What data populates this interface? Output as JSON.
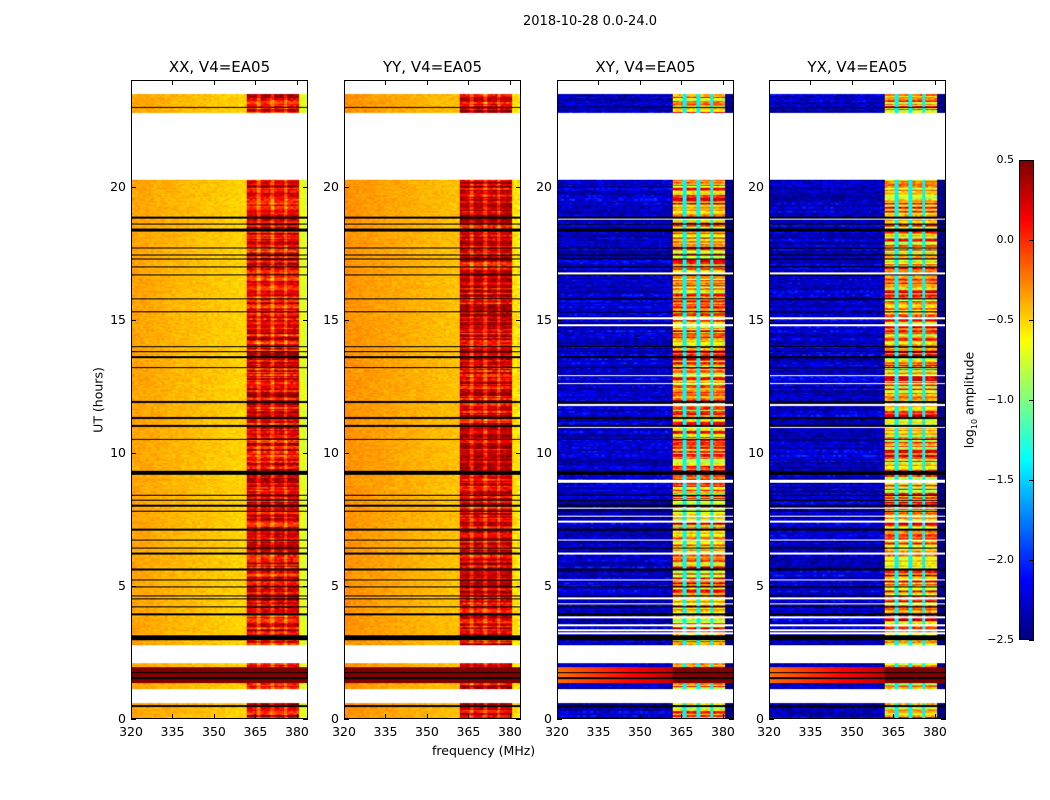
{
  "suptitle": "2018-10-28 0.0-24.0",
  "chart_data": {
    "type": "heatmap",
    "title": "2018-10-28 0.0-24.0",
    "xlabel": "frequency (MHz)",
    "ylabel": "UT (hours)",
    "xlim": [
      320,
      384
    ],
    "ylim": [
      0,
      24
    ],
    "xticks": [
      320,
      335,
      350,
      365,
      380
    ],
    "yticks": [
      0,
      5,
      10,
      15,
      20
    ],
    "grid": false,
    "colorbar": {
      "label_prefix": "log",
      "label_sub": "10",
      "label_suffix": " amplitude",
      "colormap": "jet",
      "range": [
        -2.5,
        0.5
      ],
      "ticks": [
        "0.5",
        "0.0",
        "−0.5",
        "−1.0",
        "−1.5",
        "−2.0",
        "−2.5"
      ],
      "tick_values": [
        0.5,
        0.0,
        -0.5,
        -1.0,
        -1.5,
        -2.0,
        -2.5
      ]
    },
    "data_time_range": [
      0,
      23.5
    ],
    "flagged_intervals_hours": [
      [
        20.3,
        22.8
      ],
      [
        2.05,
        2.75
      ],
      [
        0.55,
        1.1
      ]
    ],
    "bright_interval_hours": [
      1.3,
      1.9
    ],
    "rfi_band_MHz": [
      362,
      381
    ],
    "rfi_subband_gaps_MHz": [
      366.3,
      371.3,
      376.3
    ],
    "separator_lines_hours": [
      23.0,
      18.85,
      18.6,
      18.4,
      18.35,
      17.7,
      17.45,
      17.3,
      17.0,
      16.7,
      15.8,
      15.3,
      14.0,
      13.8,
      13.6,
      13.2,
      11.9,
      11.3,
      11.0,
      10.5,
      9.3,
      9.25,
      9.2,
      8.4,
      8.2,
      8.0,
      7.8,
      7.1,
      6.7,
      6.4,
      6.2,
      5.6,
      5.2,
      4.95,
      4.6,
      4.5,
      4.2,
      3.9,
      3.1,
      3.05,
      3.0,
      2.95,
      1.7,
      1.5,
      0.45
    ],
    "thin_flag_lines_hours": [
      18.8,
      16.75,
      15.05,
      14.8,
      12.9,
      12.6,
      11.8,
      10.95,
      8.95,
      8.9,
      7.9,
      7.6,
      7.4,
      6.7,
      6.2,
      5.2,
      4.5,
      4.3,
      3.8,
      3.5,
      3.3,
      3.2
    ],
    "panels": [
      {
        "title": "XX, V4=EA05",
        "kind": "parallel",
        "base_level": -0.5,
        "rfi_level": 0.2,
        "edge_level": -0.7
      },
      {
        "title": "YY, V4=EA05",
        "kind": "parallel",
        "base_level": -0.45,
        "rfi_level": 0.25,
        "edge_level": -0.55
      },
      {
        "title": "XY, V4=EA05",
        "kind": "cross",
        "base_level": -2.3,
        "rfi_level": -0.3,
        "edge_level": -2.5
      },
      {
        "title": "YX, V4=EA05",
        "kind": "cross",
        "base_level": -2.3,
        "rfi_level": -0.3,
        "edge_level": -2.5
      }
    ]
  }
}
